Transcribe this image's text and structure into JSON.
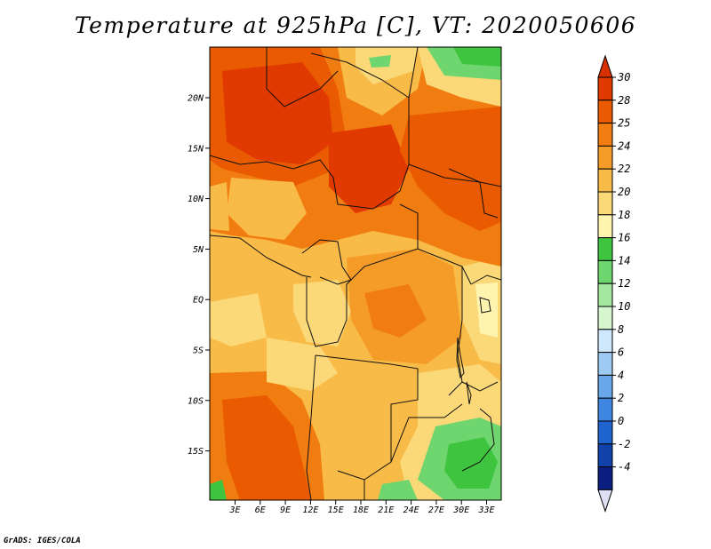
{
  "title": "Temperature at 925hPa [C], VT: 2020050606",
  "credit": "GrADS: IGES/COLA",
  "map": {
    "lat_labels": [
      "20N",
      "15N",
      "10N",
      "5N",
      "EQ",
      "5S",
      "10S",
      "15S"
    ],
    "lon_labels": [
      "3E",
      "6E",
      "9E",
      "12E",
      "15E",
      "18E",
      "21E",
      "24E",
      "27E",
      "30E",
      "33E"
    ]
  },
  "colorbar": {
    "labels": [
      "30",
      "28",
      "25",
      "24",
      "22",
      "20",
      "18",
      "16",
      "14",
      "12",
      "10",
      "8",
      "6",
      "4",
      "2",
      "0",
      "-2",
      "-4"
    ],
    "colors": [
      "#e03a00",
      "#ea5a00",
      "#f17c10",
      "#f59c28",
      "#f8bb48",
      "#fbd878",
      "#fff3b0",
      "#3ec43e",
      "#6fd66f",
      "#a4e8a0",
      "#d6f6d0",
      "#cfe8fb",
      "#9dcaf3",
      "#6aa7ea",
      "#3f86e0",
      "#1f63cf",
      "#1042aa",
      "#0a1f80"
    ],
    "top_color": "#d83000",
    "bottom_color": "#e0e0f4"
  }
}
